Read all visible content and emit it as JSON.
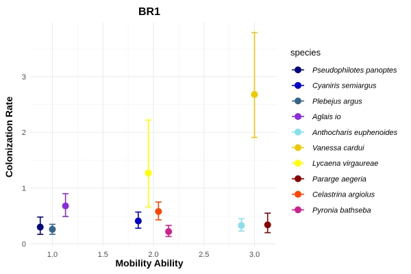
{
  "chart_data": {
    "type": "scatter",
    "title": "BR1",
    "xlabel": "Mobility Ability",
    "ylabel": "Colonization Rate",
    "xlim": [
      0.78,
      3.22
    ],
    "ylim": [
      -0.05,
      3.97
    ],
    "x_ticks": [
      1.0,
      1.5,
      2.0,
      2.5,
      3.0
    ],
    "x_tick_labels": [
      "1.0",
      "1.5",
      "2.0",
      "2.5",
      "3.0"
    ],
    "y_ticks": [
      0,
      1,
      2,
      3
    ],
    "y_tick_labels": [
      "0",
      "1",
      "2",
      "3"
    ],
    "grid": true,
    "legend_title": "species",
    "legend_position": "right",
    "series": [
      {
        "name": "Pseudophilotes panoptes",
        "color": "#000080",
        "x": 0.88,
        "y": 0.3,
        "ymin": 0.17,
        "ymax": 0.48
      },
      {
        "name": "Cyaniris semiargus",
        "color": "#0000CD",
        "x": 1.85,
        "y": 0.41,
        "ymin": 0.28,
        "ymax": 0.57
      },
      {
        "name": "Plebejus argus",
        "color": "#36648B",
        "x": 1.0,
        "y": 0.26,
        "ymin": 0.17,
        "ymax": 0.35
      },
      {
        "name": "Aglais io",
        "color": "#8A2BE2",
        "x": 1.13,
        "y": 0.68,
        "ymin": 0.49,
        "ymax": 0.9
      },
      {
        "name": "Anthocharis euphenoides",
        "color": "#87E0EE",
        "x": 2.87,
        "y": 0.33,
        "ymin": 0.23,
        "ymax": 0.45
      },
      {
        "name": "Vanessa cardui",
        "color": "#EEC900",
        "x": 3.0,
        "y": 2.68,
        "ymin": 1.91,
        "ymax": 3.79
      },
      {
        "name": "Lycaena virgaureae",
        "color": "#FFFF00",
        "x": 1.95,
        "y": 1.27,
        "ymin": 0.66,
        "ymax": 2.22
      },
      {
        "name": "Pararge aegeria",
        "color": "#8B0000",
        "x": 3.13,
        "y": 0.34,
        "ymin": 0.2,
        "ymax": 0.55
      },
      {
        "name": "Celastrina argiolus",
        "color": "#FF4500",
        "x": 2.05,
        "y": 0.58,
        "ymin": 0.43,
        "ymax": 0.75
      },
      {
        "name": "Pyronia bathseba",
        "color": "#D02090",
        "x": 2.15,
        "y": 0.22,
        "ymin": 0.13,
        "ymax": 0.33
      }
    ]
  }
}
